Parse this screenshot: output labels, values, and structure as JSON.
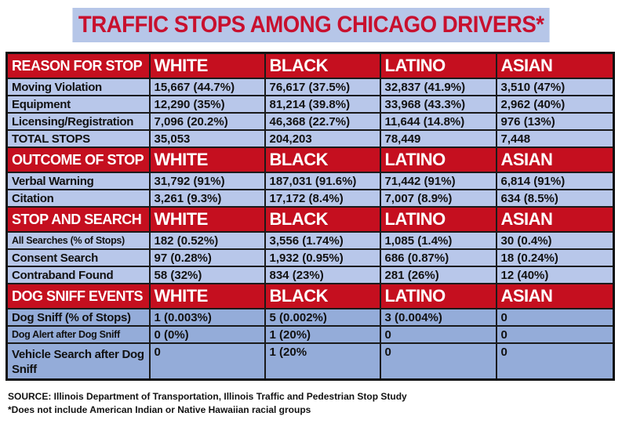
{
  "title": "TRAFFIC STOPS AMONG CHICAGO DRIVERS*",
  "races": [
    "WHITE",
    "BLACK",
    "LATINO",
    "ASIAN"
  ],
  "sections": [
    {
      "header": "REASON FOR STOP",
      "rows": [
        {
          "label": "Moving Violation",
          "values": [
            "15,667 (44.7%)",
            "76,617 (37.5%)",
            "32,837 (41.9%)",
            "3,510 (47%)"
          ]
        },
        {
          "label": "Equipment",
          "values": [
            "12,290 (35%)",
            "81,214 (39.8%)",
            "33,968 (43.3%)",
            "2,962 (40%)"
          ]
        },
        {
          "label": "Licensing/Registration",
          "values": [
            "7,096 (20.2%)",
            "46,368 (22.7%)",
            "11,644 (14.8%)",
            "976 (13%)"
          ]
        },
        {
          "label": "TOTAL STOPS",
          "values": [
            "35,053",
            "204,203",
            "78,449",
            "7,448"
          ]
        }
      ]
    },
    {
      "header": "OUTCOME OF STOP",
      "rows": [
        {
          "label": "Verbal Warning",
          "values": [
            "31,792 (91%)",
            "187,031 (91.6%)",
            "71,442 (91%)",
            "6,814 (91%)"
          ]
        },
        {
          "label": "Citation",
          "values": [
            "3,261 (9.3%)",
            "17,172 (8.4%)",
            "7,007 (8.9%)",
            "634 (8.5%)"
          ]
        }
      ]
    },
    {
      "header": "STOP AND SEARCH",
      "rows": [
        {
          "label": "All Searches (% of Stops)",
          "values": [
            "182 (0.52%)",
            "3,556 (1.74%)",
            "1,085 (1.4%)",
            "30 (0.4%)"
          ]
        },
        {
          "label": "Consent Search",
          "values": [
            "97 (0.28%)",
            "1,932 (0.95%)",
            "686 (0.87%)",
            "18 (0.24%)"
          ]
        },
        {
          "label": "Contraband Found",
          "values": [
            "58 (32%)",
            "834 (23%)",
            "281 (26%)",
            "12 (40%)"
          ]
        }
      ]
    },
    {
      "header": "DOG SNIFF EVENTS",
      "rows": [
        {
          "label": "Dog Sniff (% of Stops)",
          "values": [
            "1 (0.003%)",
            "5 (0.002%)",
            "3 (0.004%)",
            "0"
          ]
        },
        {
          "label": "Dog Alert after Dog Sniff",
          "values": [
            "0 (0%)",
            "1 (20%)",
            "0",
            "0"
          ]
        },
        {
          "label": "Vehicle Search after Dog Sniff",
          "values": [
            "0",
            "1 (20%",
            "0",
            "0"
          ]
        }
      ]
    }
  ],
  "source": "SOURCE: Illinois Department of Transportation, Illinois Traffic and Pedestrian Stop Study",
  "footnote": "*Does not include American Indian or Native Hawaiian racial groups",
  "colors": {
    "header_red": "#c50f1f",
    "row_light_blue": "#b8c7ea",
    "row_dark_blue": "#94acd9",
    "title_red": "#c8102e",
    "title_bg": "#b6c6e8"
  }
}
